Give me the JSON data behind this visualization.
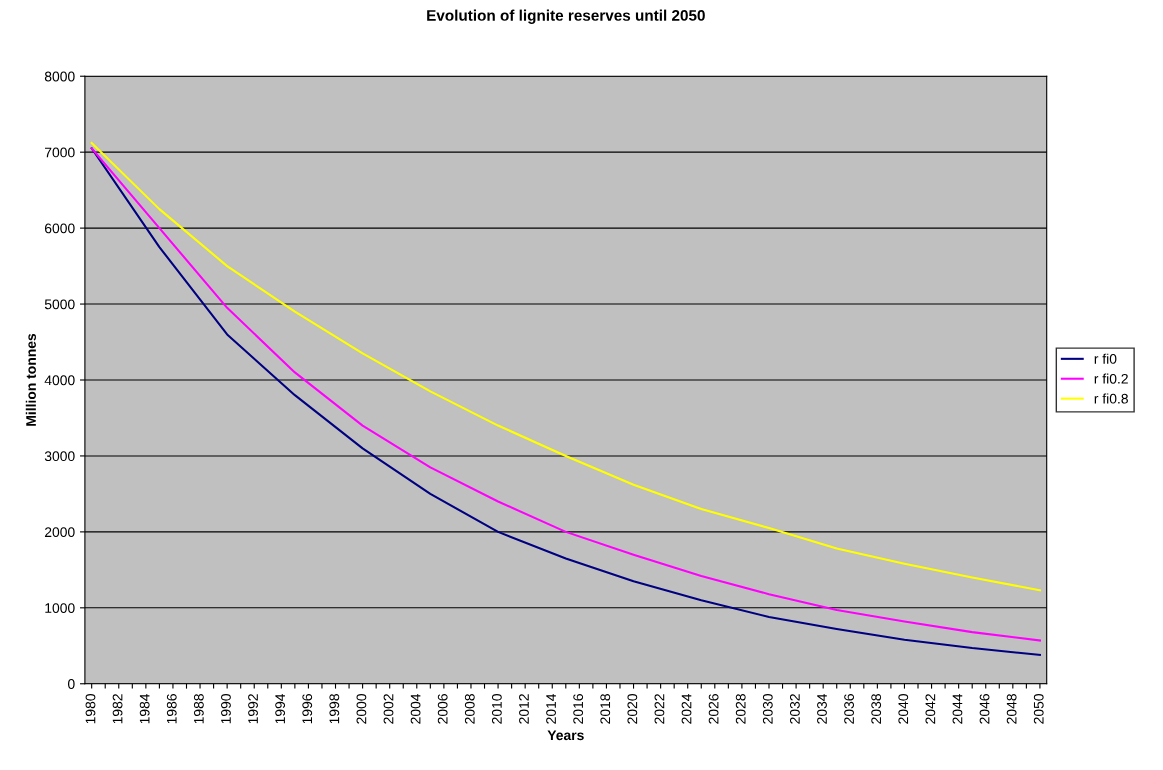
{
  "chart_data": {
    "type": "line",
    "title": "Evolution of lignite reserves until 2050",
    "xlabel": "Years",
    "ylabel": "Million tonnes",
    "x": [
      1980,
      1985,
      1990,
      1995,
      2000,
      2005,
      2010,
      2015,
      2020,
      2025,
      2030,
      2035,
      2040,
      2045,
      2050
    ],
    "series": [
      {
        "name": "r fi0",
        "color": "#000080",
        "values": [
          7050,
          5750,
          4600,
          3800,
          3100,
          2500,
          2000,
          1650,
          1350,
          1100,
          880,
          720,
          580,
          470,
          380
        ]
      },
      {
        "name": "r fi0.2",
        "color": "#ff00ff",
        "values": [
          7050,
          6000,
          4950,
          4100,
          3400,
          2850,
          2400,
          2000,
          1700,
          1420,
          1180,
          970,
          820,
          680,
          570
        ]
      },
      {
        "name": "r fi0.8",
        "color": "#ffff00",
        "values": [
          7120,
          6250,
          5500,
          4900,
          4350,
          3850,
          3400,
          3000,
          2620,
          2300,
          2050,
          1780,
          1580,
          1400,
          1230
        ]
      }
    ],
    "xlim": [
      1979.5,
      2050.5
    ],
    "xticks": [
      1980,
      {
        "value": 1981,
        "label": null
      },
      1982,
      {
        "value": 1983,
        "label": null
      },
      1984,
      {
        "value": 1985,
        "label": null
      },
      1986,
      {
        "value": 1987,
        "label": null
      },
      1988,
      {
        "value": 1989,
        "label": null
      },
      1990,
      {
        "value": 1991,
        "label": null
      },
      1992,
      {
        "value": 1993,
        "label": null
      },
      1994,
      {
        "value": 1995,
        "label": null
      },
      1996,
      {
        "value": 1997,
        "label": null
      },
      1998,
      {
        "value": 1999,
        "label": null
      },
      2000,
      {
        "value": 2001,
        "label": null
      },
      2002,
      {
        "value": 2003,
        "label": null
      },
      2004,
      {
        "value": 2005,
        "label": null
      },
      2006,
      {
        "value": 2007,
        "label": null
      },
      2008,
      {
        "value": 2009,
        "label": null
      },
      2010,
      {
        "value": 2011,
        "label": null
      },
      2012,
      {
        "value": 2013,
        "label": null
      },
      2014,
      {
        "value": 2015,
        "label": null
      },
      2016,
      {
        "value": 2017,
        "label": null
      },
      2018,
      {
        "value": 2019,
        "label": null
      },
      2020,
      {
        "value": 2021,
        "label": null
      },
      2022,
      {
        "value": 2023,
        "label": null
      },
      2024,
      {
        "value": 2025,
        "label": null
      },
      2026,
      {
        "value": 2027,
        "label": null
      },
      2028,
      {
        "value": 2029,
        "label": null
      },
      2030,
      {
        "value": 2031,
        "label": null
      },
      2032,
      {
        "value": 2033,
        "label": null
      },
      2034,
      {
        "value": 2035,
        "label": null
      },
      2036,
      {
        "value": 2037,
        "label": null
      },
      2038,
      {
        "value": 2039,
        "label": null
      },
      2040,
      {
        "value": 2041,
        "label": null
      },
      2042,
      {
        "value": 2043,
        "label": null
      },
      2044,
      {
        "value": 2045,
        "label": null
      },
      2046,
      {
        "value": 2047,
        "label": null
      },
      2048,
      {
        "value": 2049,
        "label": null
      },
      2050
    ],
    "ylim": [
      0,
      8000
    ],
    "yticks": [
      0,
      1000,
      2000,
      3000,
      4000,
      5000,
      6000,
      7000,
      8000
    ],
    "grid": "y",
    "legend": "right",
    "marker": "none",
    "line_style": "solid"
  }
}
